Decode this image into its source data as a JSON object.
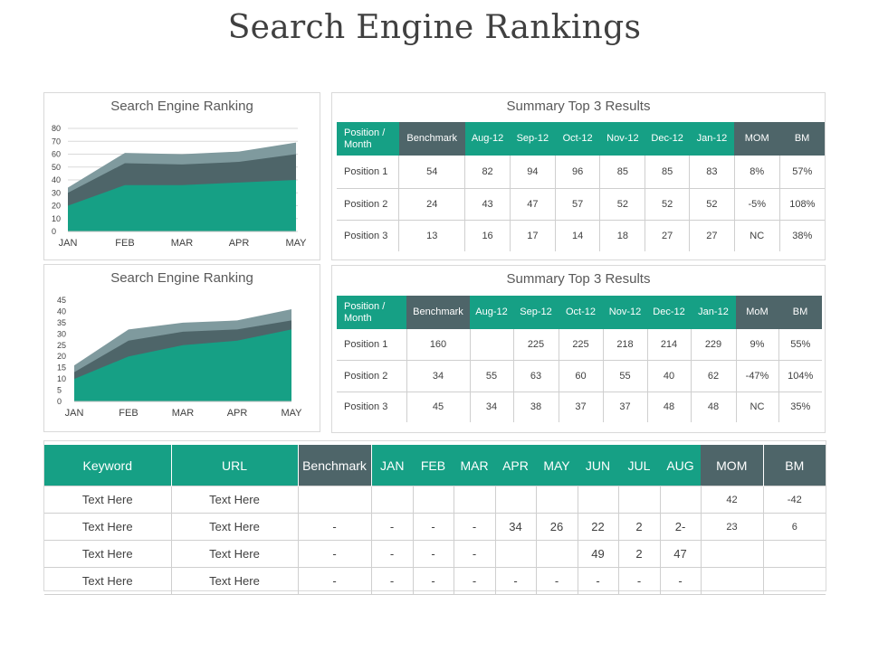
{
  "page_title": "Search Engine Rankings",
  "colors": {
    "teal": "#16a085",
    "slate": "#4e6569",
    "area_mid": "#4e6569",
    "area_top": "#7f9a9e"
  },
  "chart_data": [
    {
      "type": "area",
      "title": "Search Engine Ranking",
      "categories": [
        "JAN",
        "FEB",
        "MAR",
        "APR",
        "MAY"
      ],
      "stacked": true,
      "series": [
        {
          "values": [
            20,
            36,
            36,
            38,
            40
          ]
        },
        {
          "values": [
            10,
            17,
            16,
            16,
            20
          ]
        },
        {
          "values": [
            4,
            8,
            8,
            8,
            9
          ]
        }
      ],
      "ylim": [
        0,
        80
      ],
      "yticks": [
        0,
        10,
        20,
        30,
        40,
        50,
        60,
        70,
        80
      ],
      "grid": true
    },
    {
      "type": "area",
      "title": "Search Engine Ranking",
      "categories": [
        "JAN",
        "FEB",
        "MAR",
        "APR",
        "MAY"
      ],
      "stacked": true,
      "series": [
        {
          "values": [
            10,
            20,
            25,
            27,
            32
          ]
        },
        {
          "values": [
            3,
            7,
            6,
            5,
            4
          ]
        },
        {
          "values": [
            3,
            5,
            4,
            4,
            5
          ]
        }
      ],
      "ylim": [
        0,
        45
      ],
      "yticks": [
        0,
        5,
        10,
        15,
        20,
        25,
        30,
        35,
        40,
        45
      ],
      "grid": false
    }
  ],
  "summary1": {
    "title": "Summary Top 3 Results",
    "headers": [
      "Position / Month",
      "Benchmark",
      "Aug-12",
      "Sep-12",
      "Oct-12",
      "Nov-12",
      "Dec-12",
      "Jan-12",
      "MOM",
      "BM"
    ],
    "rows": [
      [
        "Position 1",
        "54",
        "82",
        "94",
        "96",
        "85",
        "85",
        "83",
        "8%",
        "57%"
      ],
      [
        "Position 2",
        "24",
        "43",
        "47",
        "57",
        "52",
        "52",
        "52",
        "-5%",
        "108%"
      ],
      [
        "Position 3",
        "13",
        "16",
        "17",
        "14",
        "18",
        "27",
        "27",
        "NC",
        "38%"
      ]
    ]
  },
  "summary2": {
    "title": "Summary Top 3 Results",
    "headers": [
      "Position / Month",
      "Benchmark",
      "Aug-12",
      "Sep-12",
      "Oct-12",
      "Nov-12",
      "Dec-12",
      "Jan-12",
      "MoM",
      "BM"
    ],
    "rows": [
      [
        "Position 1",
        "160",
        "",
        "225",
        "225",
        "218",
        "214",
        "229",
        "9%",
        "55%"
      ],
      [
        "Position 2",
        "34",
        "55",
        "63",
        "60",
        "55",
        "40",
        "62",
        "-47%",
        "104%"
      ],
      [
        "Position 3",
        "45",
        "34",
        "38",
        "37",
        "37",
        "48",
        "48",
        "NC",
        "35%"
      ]
    ]
  },
  "keyword_table": {
    "headers": [
      "Keyword",
      "URL",
      "Benchmark",
      "JAN",
      "FEB",
      "MAR",
      "APR",
      "MAY",
      "JUN",
      "JUL",
      "AUG",
      "MOM",
      "BM"
    ],
    "rows": [
      [
        "Text Here",
        "Text Here",
        "",
        "",
        "",
        "",
        "",
        "",
        "",
        "",
        "",
        "42",
        "-42"
      ],
      [
        "Text Here",
        "Text Here",
        "-",
        "-",
        "-",
        "-",
        "34",
        "26",
        "22",
        "2",
        "2-",
        "23",
        "6"
      ],
      [
        "Text Here",
        "Text Here",
        "-",
        "-",
        "-",
        "-",
        "",
        "",
        "49",
        "2",
        "47",
        "",
        ""
      ],
      [
        "Text Here",
        "Text Here",
        "-",
        "-",
        "-",
        "-",
        "-",
        "-",
        "-",
        "-",
        "-",
        "",
        ""
      ]
    ]
  }
}
